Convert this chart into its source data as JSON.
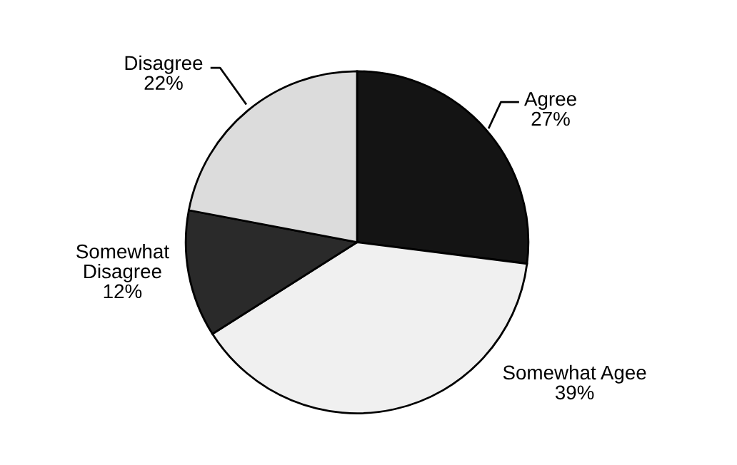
{
  "chart_data": {
    "type": "pie",
    "categories": [
      "Agree",
      "Somewhat Agee",
      "Somewhat Disagree",
      "Disagree"
    ],
    "values": [
      27,
      39,
      12,
      22
    ],
    "value_labels": [
      "27%",
      "39%",
      "12%",
      "22%"
    ],
    "colors": [
      "#141414",
      "#f0f0f0",
      "#2a2a2a",
      "#dcdcdc"
    ],
    "legend": false
  }
}
